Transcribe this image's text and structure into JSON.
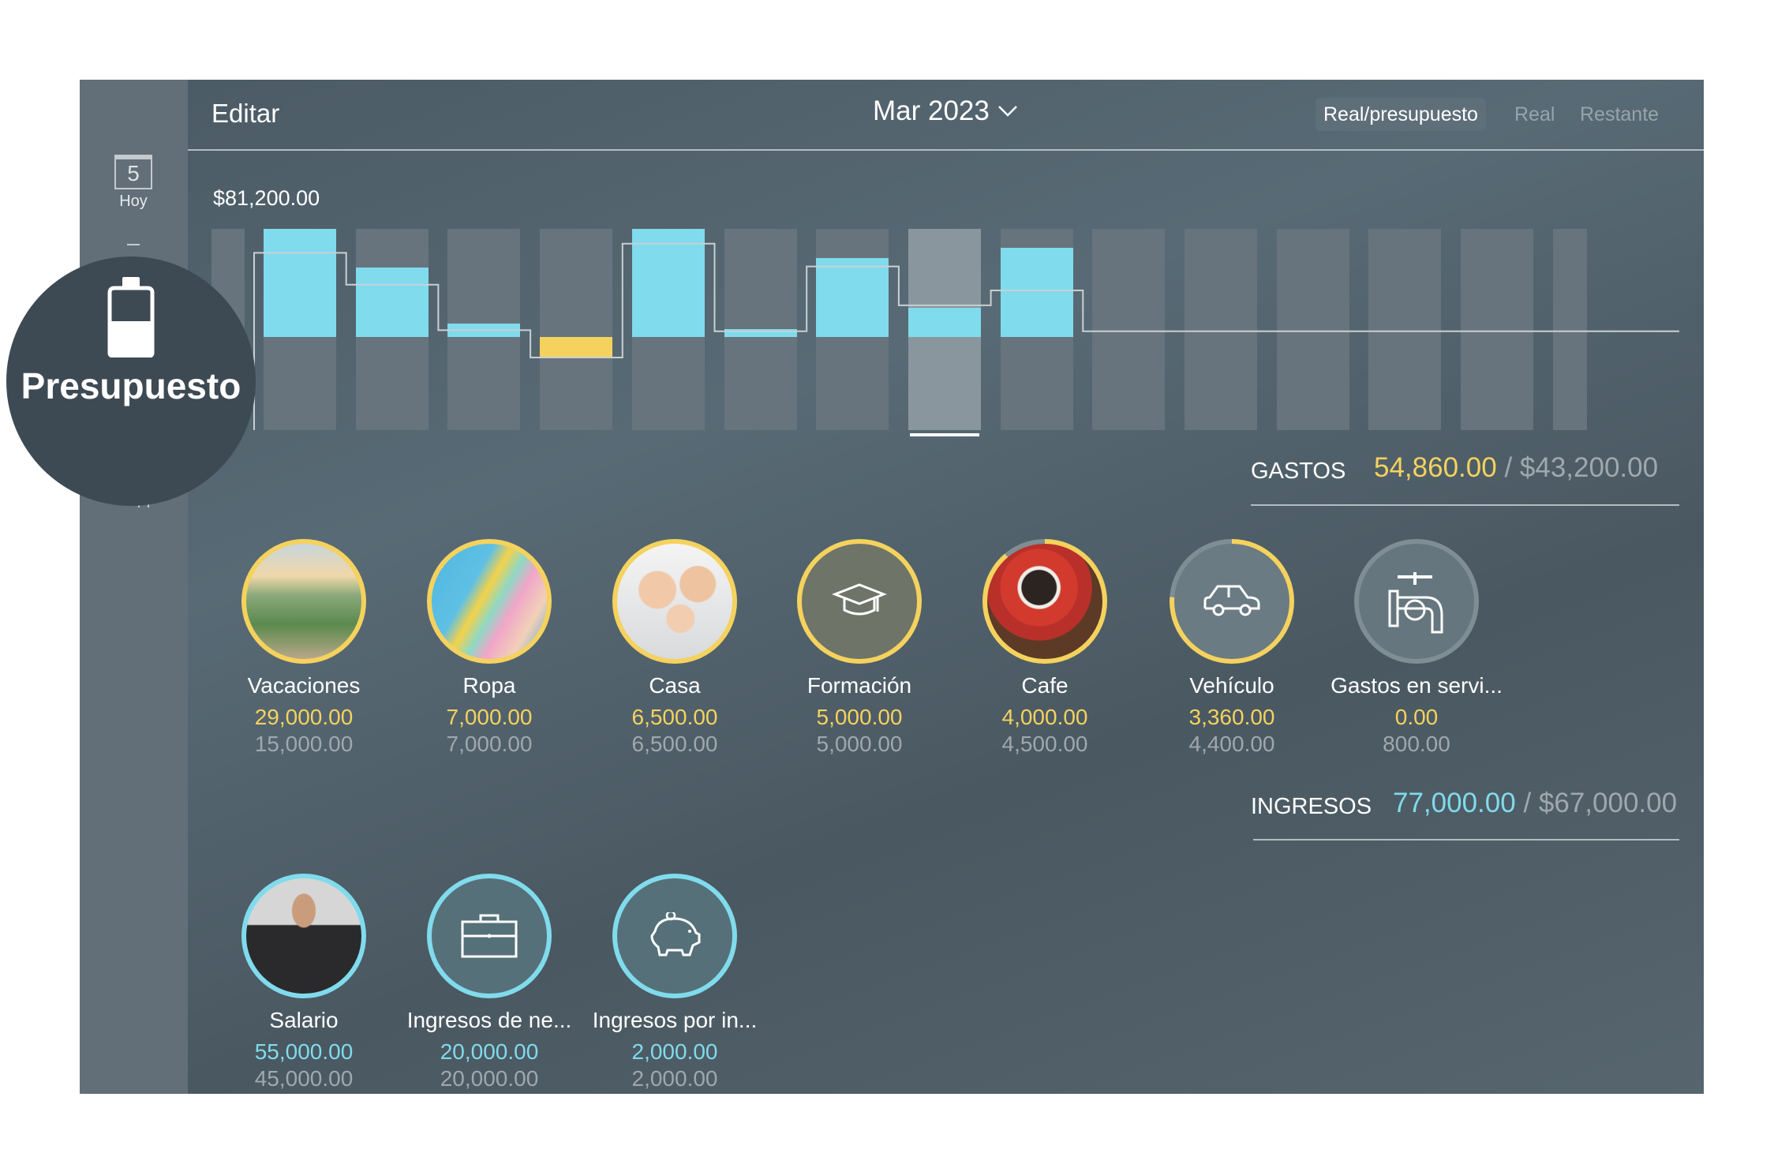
{
  "sidebar": {
    "today_day": "5",
    "today_label": "Hoy",
    "overlay_label": "Presupuesto",
    "overlay_icon": "budget-jar-icon"
  },
  "header": {
    "edit_label": "Editar",
    "period": "Mar 2023",
    "modes": [
      "Real/presupuesto",
      "Real",
      "Restante"
    ],
    "active_mode": "Real/presupuesto"
  },
  "colors": {
    "income": "#80dbec",
    "expense": "#f5d25e",
    "budget_line": "#c9d0d3"
  },
  "chart_data": {
    "type": "bar",
    "title": "$81,200.00",
    "ylim": [
      -70000,
      81200
    ],
    "selected_index": 8,
    "series": [
      {
        "type": "bar",
        "values": [
          null,
          81200,
          52100,
          10300,
          -15400,
          81200,
          6000,
          59000,
          22140,
          66700,
          0,
          0,
          0,
          0,
          0,
          0
        ]
      },
      {
        "type": "step-line",
        "values": [
          null,
          63200,
          39300,
          5100,
          -15400,
          70100,
          4300,
          53000,
          23800,
          35000,
          4300,
          4300,
          4300,
          4300,
          4300,
          4300
        ]
      }
    ]
  },
  "expenses": {
    "label": "GASTOS",
    "actual": "54,860.00",
    "budget": "/ $43,200.00",
    "items": [
      {
        "name": "Vacaciones",
        "actual": "29,000.00",
        "budget": "15,000.00",
        "progress": 1,
        "image": "vacation-photo"
      },
      {
        "name": "Ropa",
        "actual": "7,000.00",
        "budget": "7,000.00",
        "progress": 1,
        "image": "shopping-bags-photo"
      },
      {
        "name": "Casa",
        "actual": "6,500.00",
        "budget": "6,500.00",
        "progress": 1,
        "image": "family-photo"
      },
      {
        "name": "Formación",
        "actual": "5,000.00",
        "budget": "5,000.00",
        "progress": 1,
        "icon": "graduation-cap-icon"
      },
      {
        "name": "Cafe",
        "actual": "4,000.00",
        "budget": "4,500.00",
        "progress": 0.89,
        "image": "coffee-cup-photo"
      },
      {
        "name": "Vehículo",
        "actual": "3,360.00",
        "budget": "4,400.00",
        "progress": 0.76,
        "icon": "car-icon"
      },
      {
        "name": "Gastos en servi...",
        "actual": "0.00",
        "budget": "800.00",
        "progress": 0,
        "icon": "water-tap-icon"
      }
    ]
  },
  "income": {
    "label": "INGRESOS",
    "actual": "77,000.00",
    "budget": "/ $67,000.00",
    "items": [
      {
        "name": "Salario",
        "actual": "55,000.00",
        "budget": "45,000.00",
        "progress": 1,
        "image": "businessman-photo"
      },
      {
        "name": "Ingresos de ne...",
        "actual": "20,000.00",
        "budget": "20,000.00",
        "progress": 1,
        "icon": "briefcase-icon"
      },
      {
        "name": "Ingresos por in...",
        "actual": "2,000.00",
        "budget": "2,000.00",
        "progress": 1,
        "icon": "piggy-bank-icon"
      }
    ]
  }
}
